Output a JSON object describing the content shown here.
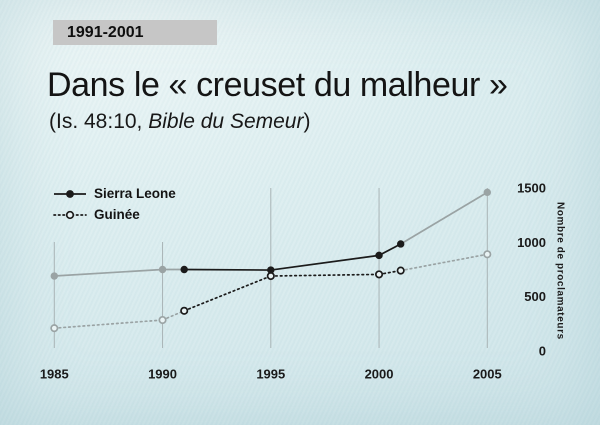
{
  "slide": {
    "badge": "1991-2001",
    "title": "Dans le « creuset du malheur »",
    "subtitle_prefix": "(Is. 48:10, ",
    "subtitle_italic": "Bible du Semeur",
    "subtitle_suffix": ")"
  },
  "chart_data": {
    "type": "line",
    "x": [
      1985,
      1990,
      1991,
      1995,
      2000,
      2001,
      2005
    ],
    "series": [
      {
        "name": "Sierra Leone",
        "line": "solid",
        "marker": "filled-circle",
        "values": [
          690,
          750,
          750,
          745,
          880,
          985,
          1460
        ]
      },
      {
        "name": "Guinée",
        "line": "dotted",
        "marker": "open-circle",
        "values": [
          210,
          285,
          370,
          690,
          705,
          740,
          890
        ]
      }
    ],
    "x_ticks": [
      1985,
      1990,
      1995,
      2000,
      2005
    ],
    "y_ticks": [
      0,
      500,
      1000,
      1500
    ],
    "ylabel": "Nombre de proclamateurs",
    "xlim": [
      1985,
      2005
    ],
    "ylim": [
      0,
      1500
    ],
    "highlight_range": [
      1991,
      2001
    ],
    "grid": "vertical-only",
    "legend_position": "top-left",
    "y_axis_side": "right",
    "colors": {
      "highlight": "#1b1b1b",
      "context": "#9aa3a4",
      "gridline": "#a9b4b6",
      "marker_open_fill": "#e9f3f4",
      "badge_bg": "#c6c6c6"
    }
  }
}
